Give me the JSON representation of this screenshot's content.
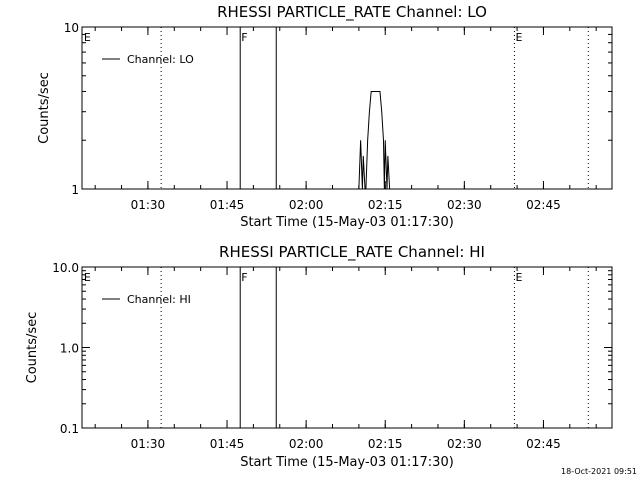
{
  "timestamp": "18-Oct-2021 09:51",
  "chart_data": [
    {
      "type": "line",
      "title": "RHESSI PARTICLE_RATE Channel: LO",
      "xlabel": "Start Time (15-May-03 01:17:30)",
      "ylabel": "Counts/sec",
      "y_scale": "log",
      "ylim": [
        1,
        10
      ],
      "y_ticks": [
        {
          "v": 1,
          "label": "1"
        },
        {
          "v": 10,
          "label": "10"
        }
      ],
      "xlim": [
        "01:17:30",
        "02:58:00"
      ],
      "x_ticks": [
        "01:30",
        "01:45",
        "02:00",
        "02:15",
        "02:30",
        "02:45"
      ],
      "legend": {
        "position": "top-left",
        "entries": [
          "Channel: LO"
        ]
      },
      "markers": [
        {
          "time": "01:17:40",
          "label": "E",
          "style": "none"
        },
        {
          "time": "01:32:30",
          "label": "",
          "style": "dotted"
        },
        {
          "time": "01:47:30",
          "label": "F",
          "style": "solid"
        },
        {
          "time": "01:54:20",
          "label": "",
          "style": "solid"
        },
        {
          "time": "02:39:30",
          "label": "E",
          "style": "dotted"
        },
        {
          "time": "02:53:30",
          "label": "",
          "style": "dotted"
        }
      ],
      "series": [
        {
          "name": "Channel: LO",
          "points": [
            [
              "02:10:00",
              1
            ],
            [
              "02:10:20",
              2
            ],
            [
              "02:10:40",
              1
            ],
            [
              "02:10:50",
              1.6
            ],
            [
              "02:11:10",
              1
            ],
            [
              "02:11:20",
              1
            ],
            [
              "02:11:40",
              2
            ],
            [
              "02:12:00",
              3
            ],
            [
              "02:12:20",
              4
            ],
            [
              "02:14:00",
              4
            ],
            [
              "02:14:20",
              3
            ],
            [
              "02:14:40",
              2
            ],
            [
              "02:14:50",
              1
            ],
            [
              "02:15:00",
              2
            ],
            [
              "02:15:20",
              1
            ],
            [
              "02:15:30",
              1.6
            ],
            [
              "02:15:50",
              1
            ]
          ]
        }
      ]
    },
    {
      "type": "line",
      "title": "RHESSI PARTICLE_RATE Channel: HI",
      "xlabel": "Start Time (15-May-03 01:17:30)",
      "ylabel": "Counts/sec",
      "y_scale": "log",
      "ylim": [
        0.1,
        10
      ],
      "y_ticks": [
        {
          "v": 0.1,
          "label": "0.1"
        },
        {
          "v": 1,
          "label": "1.0"
        },
        {
          "v": 10,
          "label": "10.0"
        }
      ],
      "xlim": [
        "01:17:30",
        "02:58:00"
      ],
      "x_ticks": [
        "01:30",
        "01:45",
        "02:00",
        "02:15",
        "02:30",
        "02:45"
      ],
      "legend": {
        "position": "top-left",
        "entries": [
          "Channel: HI"
        ]
      },
      "markers": [
        {
          "time": "01:17:40",
          "label": "E",
          "style": "none"
        },
        {
          "time": "01:32:30",
          "label": "",
          "style": "dotted"
        },
        {
          "time": "01:47:30",
          "label": "F",
          "style": "solid"
        },
        {
          "time": "01:54:20",
          "label": "",
          "style": "solid"
        },
        {
          "time": "02:39:30",
          "label": "E",
          "style": "dotted"
        },
        {
          "time": "02:53:30",
          "label": "",
          "style": "dotted"
        }
      ],
      "series": [
        {
          "name": "Channel: HI",
          "points": []
        }
      ]
    }
  ]
}
